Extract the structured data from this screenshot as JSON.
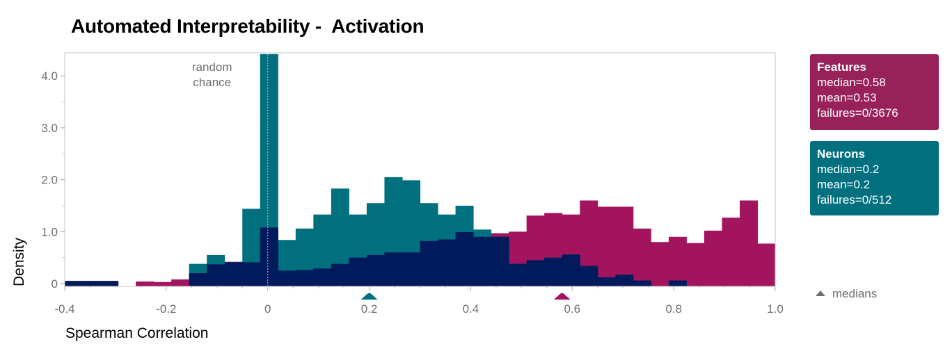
{
  "chart_data": {
    "type": "bar",
    "title": "Automated Interpretability -  Activation",
    "xlabel": "Spearman Correlation",
    "ylabel": "Density",
    "xlim": [
      -0.4,
      1.0
    ],
    "ylim": [
      0,
      4.5
    ],
    "x_ticks": [
      "-0.4",
      "-0.2",
      "0",
      "0.2",
      "0.4",
      "0.6",
      "0.8",
      "1.0"
    ],
    "y_ticks": [
      "0",
      "1.0",
      "2.0",
      "3.0",
      "4.0"
    ],
    "bin_width": 0.035,
    "annotations": [
      {
        "text": "random\nchance",
        "x": 0
      }
    ],
    "series": [
      {
        "name": "Features",
        "color": "#a3145e",
        "bins": [
          [
            -0.4,
            0.05
          ],
          [
            -0.365,
            0.05
          ],
          [
            -0.33,
            0.05
          ],
          [
            -0.26,
            0.04
          ],
          [
            -0.225,
            0.03
          ],
          [
            -0.19,
            0.08
          ],
          [
            -0.155,
            0.2
          ],
          [
            -0.12,
            0.37
          ],
          [
            -0.085,
            0.42
          ],
          [
            -0.05,
            0.41
          ],
          [
            -0.015,
            1.08
          ],
          [
            0.02,
            0.25
          ],
          [
            0.055,
            0.26
          ],
          [
            0.09,
            0.29
          ],
          [
            0.125,
            0.38
          ],
          [
            0.16,
            0.5
          ],
          [
            0.195,
            0.55
          ],
          [
            0.23,
            0.6
          ],
          [
            0.265,
            0.6
          ],
          [
            0.3,
            0.82
          ],
          [
            0.335,
            0.85
          ],
          [
            0.37,
            0.99
          ],
          [
            0.405,
            0.9
          ],
          [
            0.44,
            0.97
          ],
          [
            0.475,
            1.0
          ],
          [
            0.51,
            1.31
          ],
          [
            0.545,
            1.36
          ],
          [
            0.58,
            1.33
          ],
          [
            0.615,
            1.6
          ],
          [
            0.65,
            1.48
          ],
          [
            0.685,
            1.48
          ],
          [
            0.72,
            1.06
          ],
          [
            0.755,
            0.8
          ],
          [
            0.79,
            0.9
          ],
          [
            0.825,
            0.78
          ],
          [
            0.86,
            1.02
          ],
          [
            0.895,
            1.27
          ],
          [
            0.93,
            1.6
          ],
          [
            0.965,
            0.77
          ]
        ],
        "median": 0.58,
        "mean": 0.53,
        "failures": "0/3676"
      },
      {
        "name": "Neurons",
        "color": "#00707f",
        "bins": [
          [
            -0.4,
            0.05
          ],
          [
            -0.365,
            0.05
          ],
          [
            -0.33,
            0.05
          ],
          [
            -0.155,
            0.38
          ],
          [
            -0.12,
            0.55
          ],
          [
            -0.085,
            0.41
          ],
          [
            -0.05,
            1.44
          ],
          [
            -0.015,
            4.42
          ],
          [
            0.02,
            0.84
          ],
          [
            0.055,
            1.06
          ],
          [
            0.09,
            1.33
          ],
          [
            0.125,
            1.83
          ],
          [
            0.16,
            1.33
          ],
          [
            0.195,
            1.55
          ],
          [
            0.23,
            2.05
          ],
          [
            0.265,
            1.99
          ],
          [
            0.3,
            1.55
          ],
          [
            0.335,
            1.33
          ],
          [
            0.37,
            1.5
          ],
          [
            0.405,
            1.04
          ],
          [
            0.44,
            0.9
          ],
          [
            0.475,
            0.38
          ],
          [
            0.51,
            0.45
          ],
          [
            0.545,
            0.5
          ],
          [
            0.58,
            0.56
          ],
          [
            0.615,
            0.34
          ],
          [
            0.65,
            0.12
          ],
          [
            0.685,
            0.17
          ],
          [
            0.72,
            0.06
          ],
          [
            0.79,
            0.06
          ]
        ],
        "median": 0.2,
        "mean": 0.2,
        "failures": "0/512"
      }
    ],
    "overlap_color": "#001a5c",
    "legend": "right",
    "grid": false
  },
  "legend": {
    "features_title": "Features",
    "features_median": "median=0.58",
    "features_mean": "mean=0.53",
    "features_failures": "failures=0/3676",
    "neurons_title": "Neurons",
    "neurons_median": "median=0.2",
    "neurons_mean": "mean=0.2",
    "neurons_failures": "failures=0/512",
    "medians_label": "medians"
  }
}
